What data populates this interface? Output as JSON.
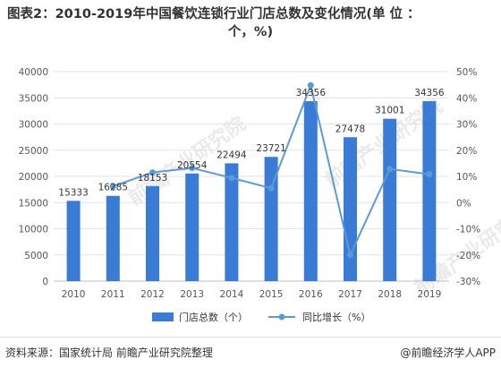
{
  "title_line1": "图表2：2010-2019年中国餐饮连锁行业门店总数及变化情况(单 位 ：",
  "title_line2": "个，%)",
  "source": "资料来源：国家统计局 前瞻产业研究院整理",
  "brand": "@前瞻经济学人APP",
  "watermark": "前瞻产业研究院",
  "colors": {
    "bar": "#3a7bd5",
    "line": "#5b9bd5",
    "grid": "#e3e3e3",
    "axis_text": "#555555"
  },
  "chart_data": {
    "type": "bar+line",
    "categories": [
      "2010",
      "2011",
      "2012",
      "2013",
      "2014",
      "2015",
      "2016",
      "2017",
      "2018",
      "2019"
    ],
    "series": [
      {
        "name": "门店总数（个）",
        "type": "bar",
        "axis": "left",
        "values": [
          15333,
          16285,
          18153,
          20554,
          22494,
          23721,
          34356,
          27478,
          31001,
          34356
        ],
        "labels": [
          "15333",
          "16285",
          "18153",
          "20554",
          "22494",
          "23721",
          "34356",
          "27478",
          "31001",
          "34356"
        ]
      },
      {
        "name": "同比增长（%）",
        "type": "line",
        "axis": "right",
        "values": [
          null,
          6.2,
          11.5,
          13.2,
          9.4,
          5.5,
          44.8,
          -20.0,
          12.8,
          10.8
        ]
      }
    ],
    "ylim_left": [
      0,
      40000
    ],
    "yticks_left": [
      "0",
      "5000",
      "10000",
      "15000",
      "20000",
      "25000",
      "30000",
      "35000",
      "40000"
    ],
    "ylim_right": [
      -30,
      50
    ],
    "yticks_right": [
      "-30%",
      "-20%",
      "-10%",
      "0%",
      "10%",
      "20%",
      "30%",
      "40%",
      "50%"
    ],
    "legend_position": "bottom",
    "grid": true
  }
}
